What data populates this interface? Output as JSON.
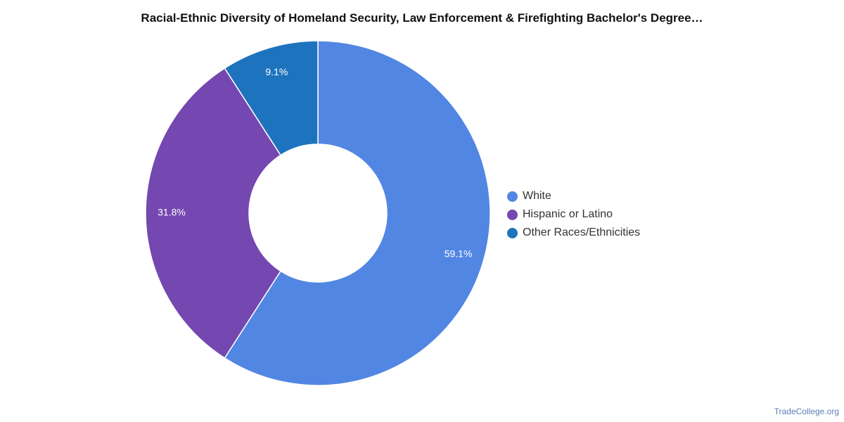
{
  "chart_data": {
    "type": "pie",
    "title": "Racial-Ethnic Diversity of Homeland Security, Law Enforcement & Firefighting Bachelor's Degree…",
    "categories": [
      "White",
      "Hispanic or Latino",
      "Other Races/Ethnicities"
    ],
    "values": [
      59.1,
      31.8,
      9.1
    ],
    "value_labels": [
      "59.1%",
      "31.8%",
      "9.1%"
    ],
    "colors": [
      "#5286e3",
      "#7547b0",
      "#1e73be"
    ],
    "donut": true,
    "legend_position": "right"
  },
  "footer": {
    "source": "TradeCollege.org"
  }
}
